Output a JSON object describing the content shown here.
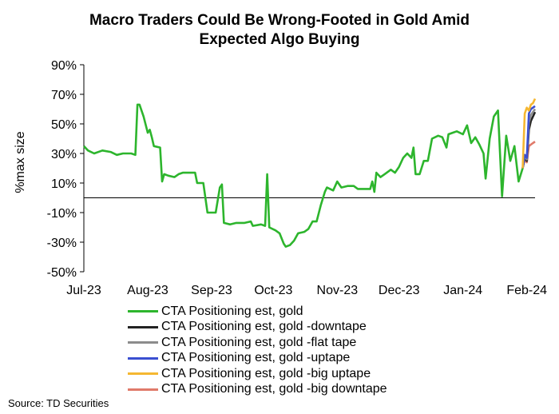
{
  "chart_data": {
    "type": "line",
    "title": "Macro Traders Could Be Wrong-Footed in Gold Amid Expected Algo Buying",
    "title_lines": [
      "Macro Traders Could Be Wrong-Footed in Gold Amid",
      "Expected Algo Buying"
    ],
    "ylabel": "%max size",
    "xlabel": "",
    "ylim": [
      -50,
      90
    ],
    "yticks": [
      "90%",
      "70%",
      "50%",
      "30%",
      "10%",
      "-10%",
      "-30%",
      "-50%"
    ],
    "ytick_values": [
      90,
      70,
      50,
      30,
      10,
      -10,
      -30,
      -50
    ],
    "x_tick_labels": [
      "Jul-23",
      "Aug-23",
      "Sep-23",
      "Oct-23",
      "Nov-23",
      "Dec-23",
      "Jan-24",
      "Feb-24"
    ],
    "xlim": [
      "2023-07-01",
      "2024-02-05"
    ],
    "legend_position": "bottom",
    "series": [
      {
        "name": "CTA Positioning est, gold",
        "color": "#2db52d",
        "points": [
          [
            "2023-07-01",
            35
          ],
          [
            "2023-07-03",
            32
          ],
          [
            "2023-07-06",
            30
          ],
          [
            "2023-07-10",
            32
          ],
          [
            "2023-07-14",
            31
          ],
          [
            "2023-07-17",
            29
          ],
          [
            "2023-07-20",
            30
          ],
          [
            "2023-07-24",
            30
          ],
          [
            "2023-07-26",
            29
          ],
          [
            "2023-07-27",
            63
          ],
          [
            "2023-07-28",
            63
          ],
          [
            "2023-07-30",
            55
          ],
          [
            "2023-08-01",
            44
          ],
          [
            "2023-08-02",
            46
          ],
          [
            "2023-08-03",
            41
          ],
          [
            "2023-08-04",
            35
          ],
          [
            "2023-08-07",
            34
          ],
          [
            "2023-08-08",
            11
          ],
          [
            "2023-08-09",
            16
          ],
          [
            "2023-08-11",
            15
          ],
          [
            "2023-08-14",
            14
          ],
          [
            "2023-08-16",
            16
          ],
          [
            "2023-08-18",
            17
          ],
          [
            "2023-08-21",
            17
          ],
          [
            "2023-08-24",
            17
          ],
          [
            "2023-08-25",
            10
          ],
          [
            "2023-08-28",
            10
          ],
          [
            "2023-08-30",
            -10
          ],
          [
            "2023-09-01",
            -10
          ],
          [
            "2023-09-03",
            -10
          ],
          [
            "2023-09-05",
            7
          ],
          [
            "2023-09-06",
            9
          ],
          [
            "2023-09-07",
            -17
          ],
          [
            "2023-09-10",
            -18
          ],
          [
            "2023-09-13",
            -17
          ],
          [
            "2023-09-17",
            -17
          ],
          [
            "2023-09-20",
            -16
          ],
          [
            "2023-09-21",
            -19
          ],
          [
            "2023-09-25",
            -18
          ],
          [
            "2023-09-27",
            -19
          ],
          [
            "2023-09-28",
            16
          ],
          [
            "2023-09-29",
            -20
          ],
          [
            "2023-10-02",
            -22
          ],
          [
            "2023-10-04",
            -24
          ],
          [
            "2023-10-06",
            -31
          ],
          [
            "2023-10-07",
            -33
          ],
          [
            "2023-10-09",
            -32
          ],
          [
            "2023-10-11",
            -29
          ],
          [
            "2023-10-13",
            -24
          ],
          [
            "2023-10-16",
            -23
          ],
          [
            "2023-10-18",
            -21
          ],
          [
            "2023-10-20",
            -16
          ],
          [
            "2023-10-22",
            -16
          ],
          [
            "2023-10-24",
            -5
          ],
          [
            "2023-10-26",
            4
          ],
          [
            "2023-10-27",
            7
          ],
          [
            "2023-10-30",
            5
          ],
          [
            "2023-11-01",
            11
          ],
          [
            "2023-11-03",
            7
          ],
          [
            "2023-11-06",
            8
          ],
          [
            "2023-11-09",
            8
          ],
          [
            "2023-11-11",
            6
          ],
          [
            "2023-11-14",
            6
          ],
          [
            "2023-11-17",
            6
          ],
          [
            "2023-11-18",
            11
          ],
          [
            "2023-11-19",
            4
          ],
          [
            "2023-11-20",
            17
          ],
          [
            "2023-11-22",
            14
          ],
          [
            "2023-11-24",
            16
          ],
          [
            "2023-11-27",
            19
          ],
          [
            "2023-11-29",
            17
          ],
          [
            "2023-12-01",
            21
          ],
          [
            "2023-12-03",
            27
          ],
          [
            "2023-12-05",
            30
          ],
          [
            "2023-12-07",
            27
          ],
          [
            "2023-12-08",
            34
          ],
          [
            "2023-12-09",
            16
          ],
          [
            "2023-12-11",
            16
          ],
          [
            "2023-12-13",
            25
          ],
          [
            "2023-12-15",
            25
          ],
          [
            "2023-12-17",
            40
          ],
          [
            "2023-12-20",
            42
          ],
          [
            "2023-12-22",
            41
          ],
          [
            "2023-12-24",
            34
          ],
          [
            "2023-12-25",
            43
          ],
          [
            "2023-12-27",
            44
          ],
          [
            "2023-12-29",
            45
          ],
          [
            "2024-01-01",
            43
          ],
          [
            "2024-01-03",
            49
          ],
          [
            "2024-01-05",
            37
          ],
          [
            "2024-01-07",
            41
          ],
          [
            "2024-01-09",
            36
          ],
          [
            "2024-01-11",
            30
          ],
          [
            "2024-01-12",
            13
          ],
          [
            "2024-01-14",
            40
          ],
          [
            "2024-01-16",
            55
          ],
          [
            "2024-01-18",
            59
          ],
          [
            "2024-01-20",
            1
          ],
          [
            "2024-01-22",
            42
          ],
          [
            "2024-01-24",
            25
          ],
          [
            "2024-01-26",
            35
          ],
          [
            "2024-01-28",
            11
          ],
          [
            "2024-01-30",
            20
          ]
        ]
      },
      {
        "name": "CTA Positioning est, gold -downtape",
        "color": "#222222",
        "points": [
          [
            "2024-01-30",
            20
          ],
          [
            "2024-01-31",
            27
          ],
          [
            "2024-02-01",
            25
          ],
          [
            "2024-02-02",
            46
          ],
          [
            "2024-02-03",
            52
          ],
          [
            "2024-02-04",
            55
          ],
          [
            "2024-02-05",
            58
          ]
        ]
      },
      {
        "name": "CTA Positioning est, gold -flat tape",
        "color": "#8c8c8c",
        "points": [
          [
            "2024-01-30",
            20
          ],
          [
            "2024-01-31",
            28
          ],
          [
            "2024-02-01",
            26
          ],
          [
            "2024-02-02",
            51
          ],
          [
            "2024-02-03",
            56
          ],
          [
            "2024-02-04",
            58
          ],
          [
            "2024-02-05",
            60
          ]
        ]
      },
      {
        "name": "CTA Positioning est, gold -uptape",
        "color": "#3a4fd1",
        "points": [
          [
            "2024-01-30",
            20
          ],
          [
            "2024-01-31",
            29
          ],
          [
            "2024-02-01",
            27
          ],
          [
            "2024-02-02",
            57
          ],
          [
            "2024-02-03",
            60
          ],
          [
            "2024-02-04",
            61
          ],
          [
            "2024-02-05",
            62
          ]
        ]
      },
      {
        "name": "CTA Positioning est, gold -big uptape",
        "color": "#f5b731",
        "points": [
          [
            "2024-01-30",
            20
          ],
          [
            "2024-01-31",
            57
          ],
          [
            "2024-02-01",
            61
          ],
          [
            "2024-02-02",
            59
          ],
          [
            "2024-02-03",
            63
          ],
          [
            "2024-02-04",
            64
          ],
          [
            "2024-02-05",
            67
          ]
        ]
      },
      {
        "name": "CTA Positioning est, gold -big downtape",
        "color": "#e07a6a",
        "points": [
          [
            "2024-01-30",
            20
          ],
          [
            "2024-01-31",
            26
          ],
          [
            "2024-02-01",
            24
          ],
          [
            "2024-02-02",
            35
          ],
          [
            "2024-02-03",
            36
          ],
          [
            "2024-02-04",
            37
          ],
          [
            "2024-02-05",
            38
          ]
        ]
      }
    ]
  },
  "source": "Source: TD Securities"
}
